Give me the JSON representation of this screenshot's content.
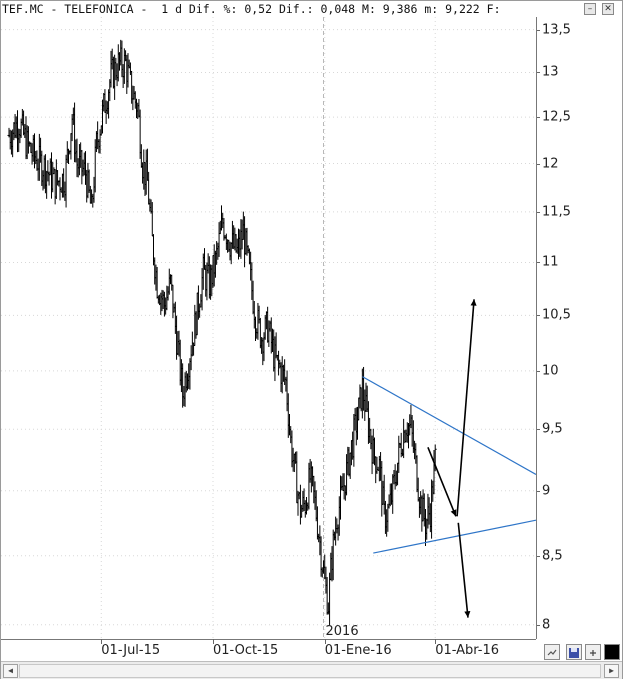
{
  "window": {
    "title": "TEF.MC - TELEFONICA -  1 d Dif. %: 0,52 Dif.: 0,048 M: 9,386 m: 9,222 F:",
    "minimize_icon": "minimize-icon",
    "close_icon": "close-icon"
  },
  "chart_data": {
    "type": "ohlc",
    "ticker": "TEF.MC",
    "name": "TELEFONICA",
    "period": "1 d",
    "stats": {
      "dif_pct": "0,52",
      "dif": "0,048",
      "max": "9,386",
      "min": "9,222"
    },
    "y_ticks": [
      "13,5",
      "13",
      "12,5",
      "12",
      "11,5",
      "11",
      "10,5",
      "10",
      "9,5",
      "9",
      "8,5",
      "8"
    ],
    "y_values": [
      13.5,
      13,
      12.5,
      12,
      11.5,
      11,
      10.5,
      10,
      9.5,
      9,
      8.5,
      8
    ],
    "x_labels": [
      "01-Jul-15",
      "01-Oct-15",
      "01-Ene-16",
      "01-Abr-16"
    ],
    "x_label_positions_days": [
      76,
      168,
      260,
      351
    ],
    "year_marker": "2016",
    "year_marker_day": 259,
    "date_range_days": [
      0,
      434
    ],
    "y_scale": "log",
    "ylim": [
      7.9,
      13.65
    ],
    "price_anchors": [
      [
        0,
        12.3
      ],
      [
        8,
        12.45
      ],
      [
        15,
        12.2
      ],
      [
        22,
        12.05
      ],
      [
        30,
        11.95
      ],
      [
        38,
        11.8
      ],
      [
        46,
        11.85
      ],
      [
        52,
        12.5
      ],
      [
        56,
        12.0
      ],
      [
        63,
        11.9
      ],
      [
        68,
        11.5
      ],
      [
        72,
        12.2
      ],
      [
        78,
        12.6
      ],
      [
        84,
        12.95
      ],
      [
        90,
        13.1
      ],
      [
        96,
        13.1
      ],
      [
        101,
        12.8
      ],
      [
        106,
        12.6
      ],
      [
        110,
        12.0
      ],
      [
        114,
        11.8
      ],
      [
        118,
        11.2
      ],
      [
        122,
        10.8
      ],
      [
        128,
        10.6
      ],
      [
        133,
        10.8
      ],
      [
        138,
        10.3
      ],
      [
        143,
        9.8
      ],
      [
        148,
        10.1
      ],
      [
        153,
        10.4
      ],
      [
        157,
        10.7
      ],
      [
        160,
        10.9
      ],
      [
        165,
        10.8
      ],
      [
        170,
        11.0
      ],
      [
        176,
        11.4
      ],
      [
        182,
        11.2
      ],
      [
        188,
        11.1
      ],
      [
        193,
        11.3
      ],
      [
        198,
        10.9
      ],
      [
        203,
        10.5
      ],
      [
        208,
        10.3
      ],
      [
        213,
        10.4
      ],
      [
        219,
        10.1
      ],
      [
        224,
        10.0
      ],
      [
        228,
        9.9
      ],
      [
        232,
        9.4
      ],
      [
        236,
        9.1
      ],
      [
        240,
        8.85
      ],
      [
        244,
        8.9
      ],
      [
        248,
        9.1
      ],
      [
        252,
        8.9
      ],
      [
        256,
        8.6
      ],
      [
        260,
        8.3
      ],
      [
        263,
        8.15
      ],
      [
        266,
        8.5
      ],
      [
        270,
        8.8
      ],
      [
        274,
        8.95
      ],
      [
        278,
        9.15
      ],
      [
        283,
        9.4
      ],
      [
        287,
        9.6
      ],
      [
        291,
        9.85
      ],
      [
        295,
        9.6
      ],
      [
        300,
        9.3
      ],
      [
        305,
        9.2
      ],
      [
        309,
        8.8
      ],
      [
        313,
        8.85
      ],
      [
        318,
        9.1
      ],
      [
        322,
        9.35
      ],
      [
        327,
        9.55
      ],
      [
        331,
        9.5
      ],
      [
        335,
        9.2
      ],
      [
        339,
        8.9
      ],
      [
        343,
        8.75
      ],
      [
        347,
        8.85
      ],
      [
        351,
        9.25
      ]
    ],
    "trendlines": [
      {
        "name": "upper-trendline",
        "color": "#2e75c8",
        "from": [
          291,
          9.95
        ],
        "to": [
          434,
          9.13
        ]
      },
      {
        "name": "lower-trendline",
        "color": "#2e75c8",
        "from": [
          300,
          8.52
        ],
        "to": [
          434,
          8.77
        ]
      }
    ],
    "arrows": [
      {
        "name": "arrow-down-short",
        "from": [
          345,
          9.35
        ],
        "to": [
          368,
          8.8
        ]
      },
      {
        "name": "arrow-up-long",
        "from": [
          369,
          8.8
        ],
        "to": [
          383,
          10.65
        ]
      },
      {
        "name": "arrow-down-long",
        "from": [
          370,
          8.75
        ],
        "to": [
          378,
          8.05
        ]
      }
    ],
    "colors": {
      "bars": "#000000",
      "trendline": "#2e75c8",
      "grid": "#d8d8d8",
      "year_marker_line": "#b8b8b8"
    }
  },
  "toolbar": {
    "icons": [
      "chart-settings-icon",
      "save-icon",
      "pin-icon",
      "black-square-icon"
    ]
  }
}
